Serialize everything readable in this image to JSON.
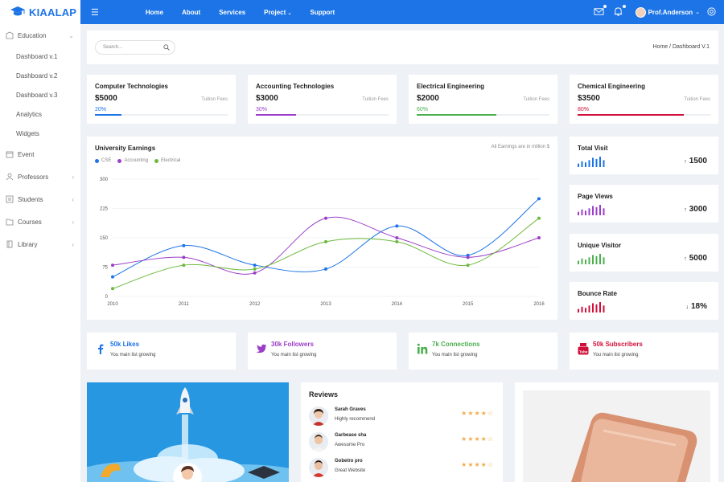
{
  "brand": {
    "name": "KIAALAP",
    "accent": "#1c74e6"
  },
  "topbar": {
    "nav": [
      "Home",
      "About",
      "Services",
      "Project",
      "Support"
    ],
    "user_name": "Prof.Anderson"
  },
  "sidebar": {
    "items": [
      {
        "label": "Education",
        "icon": "education-icon"
      },
      {
        "label": "Event",
        "icon": "calendar-icon"
      },
      {
        "label": "Professors",
        "icon": "professor-icon"
      },
      {
        "label": "Students",
        "icon": "students-icon"
      },
      {
        "label": "Courses",
        "icon": "courses-icon"
      },
      {
        "label": "Library",
        "icon": "library-icon"
      }
    ],
    "sub_items": [
      "Dashboard v.1",
      "Dashboard v.2",
      "Dashboard v.3",
      "Analytics",
      "Widgets"
    ]
  },
  "search": {
    "placeholder": "Search..."
  },
  "breadcrumb": "Home / Dashboard V.1",
  "fees": [
    {
      "title": "Computer Technologies",
      "amount": "$5000",
      "label": "Tuition Fees",
      "percent_text": "20%",
      "percent": 20,
      "color": "#1c74e6"
    },
    {
      "title": "Accounting Technologies",
      "amount": "$3000",
      "label": "Tuition Fees",
      "percent_text": "30%",
      "percent": 30,
      "color": "#9b3fc8"
    },
    {
      "title": "Electrical Engineering",
      "amount": "$2000",
      "label": "Tuition Fees",
      "percent_text": "60%",
      "percent": 60,
      "color": "#4caf50"
    },
    {
      "title": "Chemical Engineering",
      "amount": "$3500",
      "label": "Tuition Fees",
      "percent_text": "80%",
      "percent": 80,
      "color": "#d0103a"
    }
  ],
  "earnings": {
    "title": "University Earnings",
    "note": "All Earnings are in million $"
  },
  "chart_data": {
    "type": "line",
    "title": "University Earnings",
    "x": [
      "2010",
      "2011",
      "2012",
      "2013",
      "2014",
      "2015",
      "2016"
    ],
    "yticks": [
      "0",
      "75",
      "150",
      "225",
      "300"
    ],
    "ylim": [
      0,
      300
    ],
    "series": [
      {
        "name": "CSE",
        "color": "#1c74e6",
        "values": [
          50,
          130,
          80,
          70,
          180,
          105,
          250
        ]
      },
      {
        "name": "Accounting",
        "color": "#9b3fc8",
        "values": [
          80,
          100,
          60,
          200,
          150,
          100,
          150
        ]
      },
      {
        "name": "Electrical",
        "color": "#6cb93c",
        "values": [
          20,
          80,
          70,
          140,
          140,
          80,
          200
        ]
      }
    ]
  },
  "stats": [
    {
      "title": "Total Visit",
      "value": "1500",
      "color": "#1c74e6",
      "bars": [
        3,
        5,
        4,
        6,
        8,
        7,
        9,
        6
      ]
    },
    {
      "title": "Page Views",
      "value": "3000",
      "color": "#9b3fc8",
      "bars": [
        3,
        5,
        4,
        6,
        8,
        7,
        9,
        6
      ]
    },
    {
      "title": "Unique Visitor",
      "value": "5000",
      "color": "#4caf50",
      "bars": [
        3,
        5,
        4,
        6,
        8,
        7,
        9,
        6
      ]
    },
    {
      "title": "Bounce Rate",
      "value": "18%",
      "color": "#d0103a",
      "bars": [
        3,
        5,
        4,
        6,
        8,
        7,
        9,
        6
      ]
    }
  ],
  "social": [
    {
      "name": "50k Likes",
      "desc": "You main list growing",
      "icon": "facebook-icon",
      "color": "#1c74e6"
    },
    {
      "name": "30k Followers",
      "desc": "You main list growing",
      "icon": "twitter-icon",
      "color": "#9b3fc8"
    },
    {
      "name": "7k Connections",
      "desc": "You main list growing",
      "icon": "linkedin-icon",
      "color": "#4caf50"
    },
    {
      "name": "50k Subscribers",
      "desc": "You main list growing",
      "icon": "youtube-icon",
      "color": "#d0103a"
    }
  ],
  "reviews": {
    "title": "Reviews",
    "items": [
      {
        "name": "Sarah Graves",
        "text": "Highly recommend",
        "stars": "★★★★☆"
      },
      {
        "name": "Garbease sha",
        "text": "Awesome Pro",
        "stars": "★★★★☆"
      },
      {
        "name": "Gobetro pro",
        "text": "Great Website",
        "stars": "★★★★☆"
      }
    ]
  }
}
